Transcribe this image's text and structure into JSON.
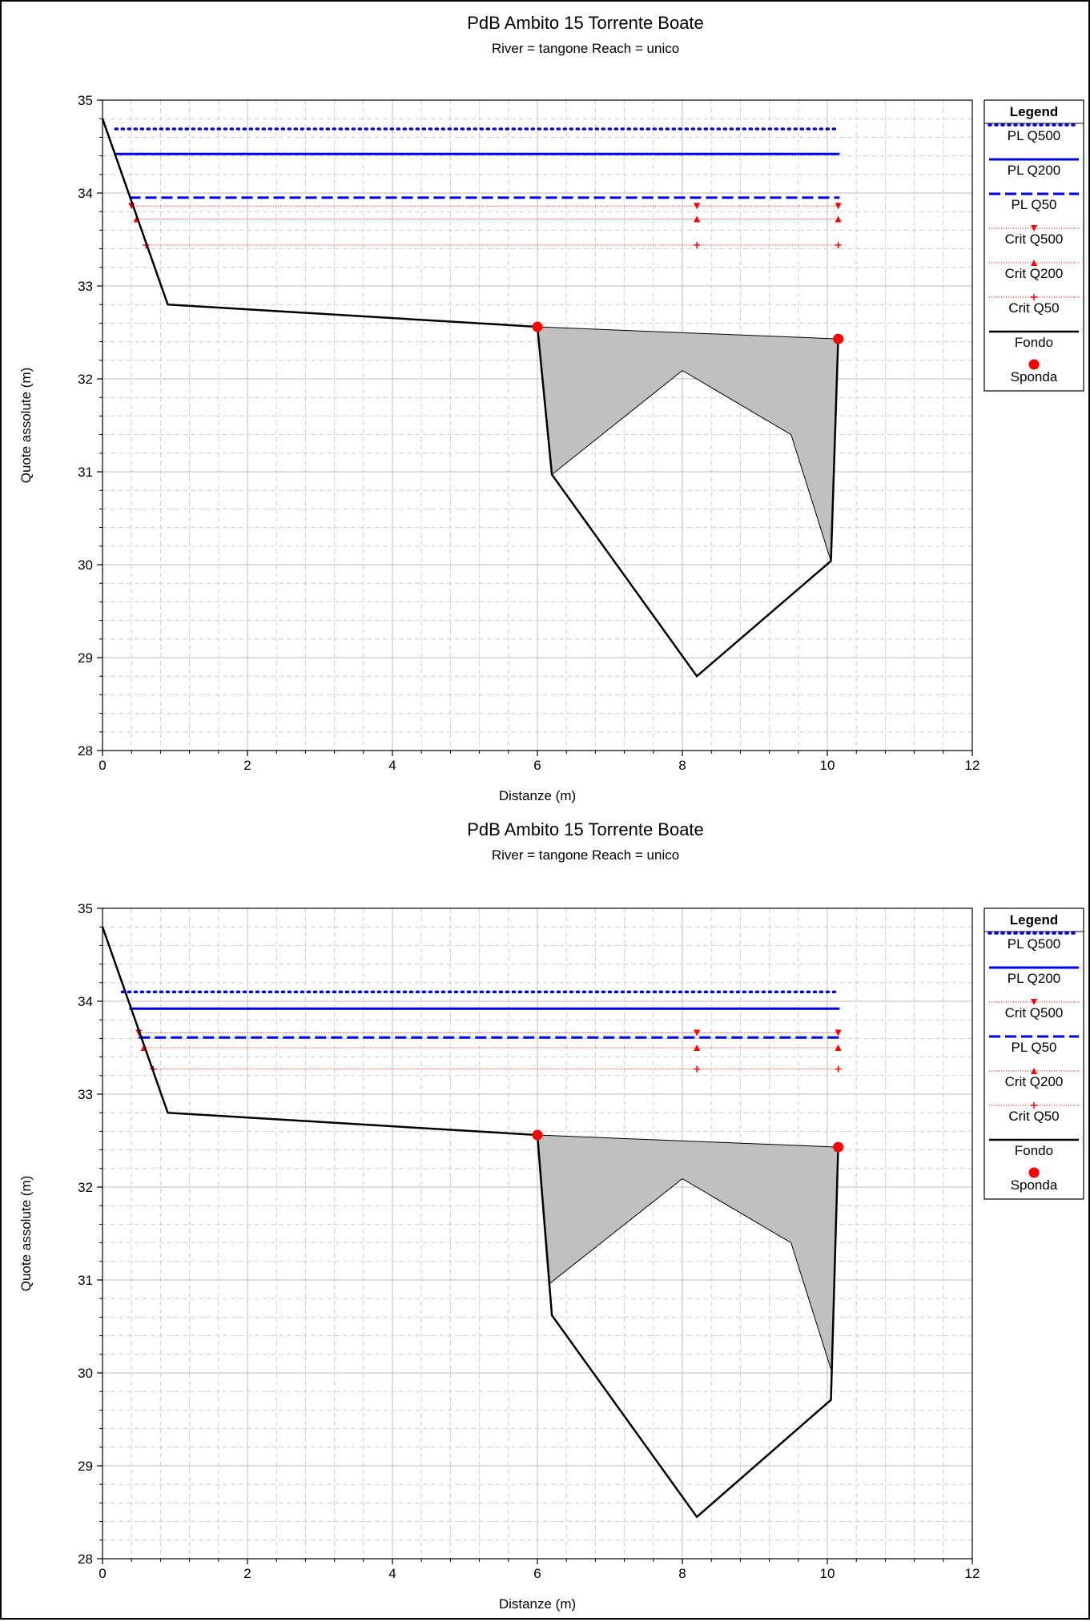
{
  "chart_data": [
    {
      "type": "line",
      "title": "PdB Ambito 15 Torrente Boate",
      "subtitle": "River = tangone    Reach = unico",
      "xlabel": "Distanze (m)",
      "ylabel": "Quote assolute (m)",
      "xlim": [
        0,
        12
      ],
      "ylim": [
        28,
        35
      ],
      "xticks": [
        "0",
        "2",
        "4",
        "6",
        "8",
        "10",
        "12"
      ],
      "yticks": [
        "28",
        "29",
        "30",
        "31",
        "32",
        "33",
        "34",
        "35"
      ],
      "grid": true,
      "legend_title": "Legend",
      "legend_placement": "right",
      "colors": {
        "water": "#0000ee",
        "crit": "#ff0000",
        "ground": "#000000",
        "fill": "#c0c0c0"
      },
      "legend": [
        {
          "label": "PL Q500",
          "style": "dotted"
        },
        {
          "label": "PL Q200",
          "style": "solid"
        },
        {
          "label": "PL Q50",
          "style": "dashed"
        },
        {
          "label": "Crit Q500",
          "style": "crit-down"
        },
        {
          "label": "Crit Q200",
          "style": "crit-up"
        },
        {
          "label": "Crit Q50",
          "style": "crit-plus"
        },
        {
          "label": "Fondo",
          "style": "ground"
        },
        {
          "label": "Sponda",
          "style": "bank"
        }
      ],
      "water_levels": [
        {
          "name": "PL Q500",
          "y": 34.69,
          "x": [
            0.18,
            10.12
          ],
          "style": "dotted"
        },
        {
          "name": "PL Q200",
          "y": 34.42,
          "x": [
            0.18,
            10.17
          ],
          "style": "solid"
        },
        {
          "name": "PL Q50",
          "y": 33.95,
          "x": [
            0.37,
            10.17
          ],
          "style": "dashed"
        }
      ],
      "critical_levels": [
        {
          "name": "Crit Q500",
          "y": 33.86,
          "x": [
            0.4,
            10.15
          ],
          "marker": "down",
          "marks_x": [
            0.4,
            8.2,
            10.15
          ]
        },
        {
          "name": "Crit Q200",
          "y": 33.72,
          "x": [
            0.47,
            10.15
          ],
          "marker": "up",
          "marks_x": [
            0.47,
            8.2,
            10.15
          ]
        },
        {
          "name": "Crit Q50",
          "y": 33.44,
          "x": [
            0.6,
            10.15
          ],
          "marker": "plus",
          "marks_x": [
            0.6,
            8.2,
            10.15
          ]
        }
      ],
      "ground": [
        [
          0,
          34.8
        ],
        [
          0.9,
          32.8
        ],
        [
          6.0,
          32.56
        ],
        [
          6.2,
          30.97
        ],
        [
          8.2,
          28.8
        ],
        [
          10.05,
          30.04
        ],
        [
          10.15,
          32.43
        ]
      ],
      "culvert": [
        [
          6.2,
          30.97
        ],
        [
          8.0,
          32.09
        ],
        [
          9.5,
          31.4
        ],
        [
          10.05,
          30.04
        ]
      ],
      "banks": [
        [
          6.0,
          32.56
        ],
        [
          10.15,
          32.43
        ]
      ]
    },
    {
      "type": "line",
      "title": "PdB Ambito 15 Torrente Boate",
      "subtitle": "River = tangone    Reach = unico",
      "xlabel": "Distanze (m)",
      "ylabel": "Quote assolute (m)",
      "xlim": [
        0,
        12
      ],
      "ylim": [
        28,
        35
      ],
      "xticks": [
        "0",
        "2",
        "4",
        "6",
        "8",
        "10",
        "12"
      ],
      "yticks": [
        "28",
        "29",
        "30",
        "31",
        "32",
        "33",
        "34",
        "35"
      ],
      "grid": true,
      "legend_title": "Legend",
      "legend_placement": "right",
      "colors": {
        "water": "#0000ee",
        "crit": "#ff0000",
        "ground": "#000000",
        "fill": "#c0c0c0"
      },
      "legend": [
        {
          "label": "PL Q500",
          "style": "dotted"
        },
        {
          "label": "PL Q200",
          "style": "solid"
        },
        {
          "label": "Crit Q500",
          "style": "crit-down"
        },
        {
          "label": "PL Q50",
          "style": "dashed"
        },
        {
          "label": "Crit Q200",
          "style": "crit-up"
        },
        {
          "label": "Crit Q50",
          "style": "crit-plus"
        },
        {
          "label": "Fondo",
          "style": "ground"
        },
        {
          "label": "Sponda",
          "style": "bank"
        }
      ],
      "water_levels": [
        {
          "name": "PL Q500",
          "y": 34.1,
          "x": [
            0.27,
            10.12
          ],
          "style": "dotted"
        },
        {
          "name": "PL Q200",
          "y": 33.92,
          "x": [
            0.37,
            10.17
          ],
          "style": "solid"
        },
        {
          "name": "PL Q50",
          "y": 33.61,
          "x": [
            0.5,
            10.17
          ],
          "style": "dashed"
        }
      ],
      "critical_levels": [
        {
          "name": "Crit Q500",
          "y": 33.66,
          "x": [
            0.5,
            10.15
          ],
          "marker": "down",
          "marks_x": [
            0.5,
            8.2,
            10.15
          ]
        },
        {
          "name": "Crit Q200",
          "y": 33.5,
          "x": [
            0.57,
            10.15
          ],
          "marker": "up",
          "marks_x": [
            0.57,
            8.2,
            10.15
          ]
        },
        {
          "name": "Crit Q50",
          "y": 33.27,
          "x": [
            0.7,
            10.15
          ],
          "marker": "plus",
          "marks_x": [
            0.7,
            8.2,
            10.15
          ]
        }
      ],
      "ground": [
        [
          0,
          34.8
        ],
        [
          0.9,
          32.8
        ],
        [
          6.0,
          32.56
        ],
        [
          6.2,
          30.62
        ],
        [
          8.2,
          28.45
        ],
        [
          10.05,
          29.71
        ],
        [
          10.15,
          32.43
        ]
      ],
      "culvert": [
        [
          6.15,
          30.95
        ],
        [
          8.0,
          32.09
        ],
        [
          9.5,
          31.4
        ],
        [
          10.05,
          30.04
        ]
      ],
      "banks": [
        [
          6.0,
          32.56
        ],
        [
          10.15,
          32.43
        ]
      ]
    }
  ]
}
